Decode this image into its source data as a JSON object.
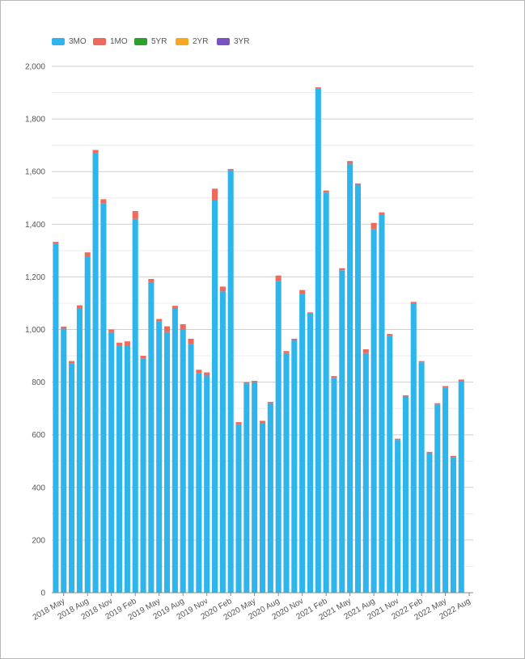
{
  "chart_data": {
    "type": "bar",
    "stacked": true,
    "title": "",
    "xlabel": "",
    "ylabel": "",
    "ylim": [
      0,
      2000
    ],
    "y_ticks": [
      0,
      200,
      400,
      600,
      800,
      1000,
      1200,
      1400,
      1600,
      1800,
      2000
    ],
    "y_tick_labels": [
      "0",
      "200",
      "400",
      "600",
      "800",
      "1,000",
      "1,200",
      "1,400",
      "1,600",
      "1,800",
      "2,000"
    ],
    "legend_position": "top-left",
    "grid": true,
    "categories": [
      "2018 Apr",
      "2018 May",
      "2018 Jun",
      "2018 Jul",
      "2018 Aug",
      "2018 Sep",
      "2018 Oct",
      "2018 Nov",
      "2018 Dec",
      "2019 Jan",
      "2019 Feb",
      "2019 Mar",
      "2019 Apr",
      "2019 May",
      "2019 Jun",
      "2019 Jul",
      "2019 Aug",
      "2019 Sep",
      "2019 Oct",
      "2019 Nov",
      "2019 Dec",
      "2020 Jan",
      "2020 Feb",
      "2020 Mar",
      "2020 Apr",
      "2020 May",
      "2020 Jun",
      "2020 Jul",
      "2020 Aug",
      "2020 Sep",
      "2020 Oct",
      "2020 Nov",
      "2020 Dec",
      "2021 Jan",
      "2021 Feb",
      "2021 Mar",
      "2021 Apr",
      "2021 May",
      "2021 Jun",
      "2021 Jul",
      "2021 Aug",
      "2021 Sep",
      "2021 Oct",
      "2021 Nov",
      "2021 Dec",
      "2022 Jan",
      "2022 Feb",
      "2022 Mar",
      "2022 Apr",
      "2022 May",
      "2022 Jun",
      "2022 Jul",
      "2022 Aug"
    ],
    "x_tick_labels": [
      {
        "index": 1,
        "label": "2018 May"
      },
      {
        "index": 4,
        "label": "2018 Aug"
      },
      {
        "index": 7,
        "label": "2018 Nov"
      },
      {
        "index": 10,
        "label": "2019 Feb"
      },
      {
        "index": 13,
        "label": "2019 May"
      },
      {
        "index": 16,
        "label": "2019 Aug"
      },
      {
        "index": 19,
        "label": "2019 Nov"
      },
      {
        "index": 22,
        "label": "2020 Feb"
      },
      {
        "index": 25,
        "label": "2020 May"
      },
      {
        "index": 28,
        "label": "2020 Aug"
      },
      {
        "index": 31,
        "label": "2020 Nov"
      },
      {
        "index": 34,
        "label": "2021 Feb"
      },
      {
        "index": 37,
        "label": "2021 May"
      },
      {
        "index": 40,
        "label": "2021 Aug"
      },
      {
        "index": 43,
        "label": "2021 Nov"
      },
      {
        "index": 46,
        "label": "2022 Feb"
      },
      {
        "index": 49,
        "label": "2022 May"
      },
      {
        "index": 52,
        "label": "2022 Aug"
      }
    ],
    "series": [
      {
        "name": "3MO",
        "color": "#2eb5ec",
        "values": [
          1325,
          1003,
          870,
          1080,
          1278,
          1670,
          1480,
          990,
          940,
          940,
          1420,
          890,
          1180,
          1030,
          990,
          1080,
          1000,
          945,
          835,
          825,
          1490,
          1145,
          1605,
          640,
          795,
          800,
          645,
          720,
          1185,
          910,
          960,
          1135,
          1060,
          1915,
          1520,
          815,
          1225,
          1630,
          1550,
          910,
          1380,
          1435,
          975,
          580,
          745,
          1100,
          875,
          530,
          715,
          780,
          515,
          805,
          0
        ]
      },
      {
        "name": "1MO",
        "color": "#ee6a5c",
        "values": [
          8,
          8,
          10,
          12,
          15,
          12,
          15,
          10,
          10,
          15,
          30,
          10,
          12,
          10,
          22,
          10,
          20,
          20,
          12,
          12,
          45,
          18,
          5,
          8,
          5,
          5,
          8,
          5,
          20,
          8,
          5,
          15,
          5,
          5,
          8,
          8,
          8,
          10,
          5,
          15,
          25,
          10,
          8,
          5,
          5,
          5,
          5,
          5,
          5,
          5,
          5,
          5,
          0
        ]
      },
      {
        "name": "5YR",
        "color": "#2ca02c",
        "values": [
          0,
          0,
          0,
          0,
          0,
          0,
          0,
          0,
          0,
          0,
          0,
          0,
          0,
          0,
          0,
          0,
          0,
          0,
          0,
          0,
          0,
          0,
          0,
          0,
          0,
          0,
          0,
          0,
          0,
          0,
          0,
          0,
          0,
          0,
          0,
          0,
          0,
          0,
          0,
          0,
          0,
          0,
          0,
          0,
          0,
          0,
          0,
          0,
          0,
          0,
          0,
          0,
          0
        ]
      },
      {
        "name": "2YR",
        "color": "#f7a823",
        "values": [
          0,
          0,
          0,
          0,
          0,
          0,
          0,
          0,
          0,
          0,
          0,
          0,
          0,
          0,
          0,
          0,
          0,
          0,
          0,
          0,
          0,
          0,
          0,
          0,
          0,
          0,
          0,
          0,
          0,
          0,
          0,
          0,
          0,
          0,
          0,
          0,
          0,
          0,
          0,
          0,
          0,
          0,
          0,
          0,
          0,
          0,
          0,
          0,
          0,
          0,
          0,
          0,
          0
        ]
      },
      {
        "name": "3YR",
        "color": "#7b52c3",
        "values": [
          0,
          0,
          0,
          0,
          0,
          0,
          0,
          0,
          0,
          0,
          0,
          0,
          0,
          0,
          0,
          0,
          0,
          0,
          0,
          0,
          0,
          0,
          0,
          0,
          0,
          0,
          0,
          0,
          0,
          0,
          0,
          0,
          0,
          0,
          0,
          0,
          0,
          0,
          0,
          0,
          0,
          0,
          0,
          0,
          0,
          0,
          0,
          0,
          0,
          0,
          0,
          0,
          0
        ]
      }
    ]
  }
}
